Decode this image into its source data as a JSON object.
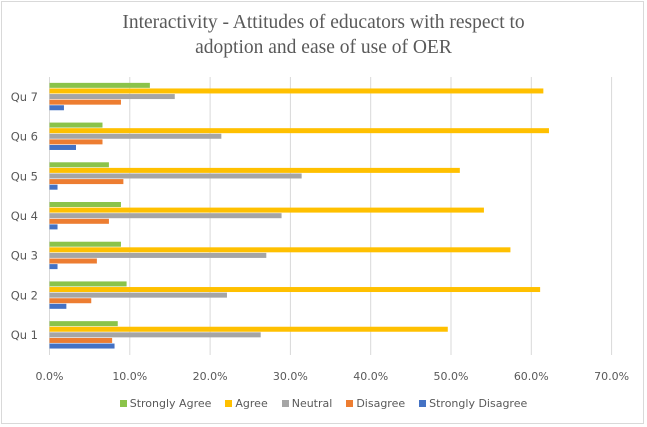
{
  "chart_data": {
    "type": "bar",
    "orientation": "horizontal",
    "title": "Interactivity - Attitudes of educators with respect to adoption and ease of use of OER",
    "title_lines": [
      "Interactivity - Attitudes of educators with respect to",
      "adoption and ease of use of OER"
    ],
    "xlabel": "",
    "ylabel": "",
    "categories": [
      "Qu 1",
      "Qu 2",
      "Qu 3",
      "Qu 4",
      "Qu 5",
      "Qu 6",
      "Qu 7"
    ],
    "xlim": [
      0,
      0.7
    ],
    "xticks": [
      0,
      0.1,
      0.2,
      0.3,
      0.4,
      0.5,
      0.6,
      0.7
    ],
    "xtick_labels": [
      "0.0%",
      "10.0%",
      "20.0%",
      "30.0%",
      "40.0%",
      "50.0%",
      "60.0%",
      "70.0%"
    ],
    "grid": "vertical",
    "legend_position": "bottom",
    "series": [
      {
        "name": "Strongly Agree",
        "color": "#8bc34a",
        "values": [
          0.085,
          0.096,
          0.089,
          0.089,
          0.074,
          0.066,
          0.125
        ]
      },
      {
        "name": "Agree",
        "color": "#ffc000",
        "values": [
          0.496,
          0.611,
          0.574,
          0.541,
          0.511,
          0.622,
          0.615
        ]
      },
      {
        "name": "Neutral",
        "color": "#a5a5a5",
        "values": [
          0.263,
          0.221,
          0.27,
          0.289,
          0.314,
          0.214,
          0.156
        ]
      },
      {
        "name": "Disagree",
        "color": "#ed7d31",
        "values": [
          0.078,
          0.052,
          0.059,
          0.074,
          0.092,
          0.066,
          0.089
        ]
      },
      {
        "name": "Strongly Disagree",
        "color": "#4472c4",
        "values": [
          0.081,
          0.021,
          0.01,
          0.01,
          0.01,
          0.033,
          0.018
        ]
      }
    ]
  }
}
